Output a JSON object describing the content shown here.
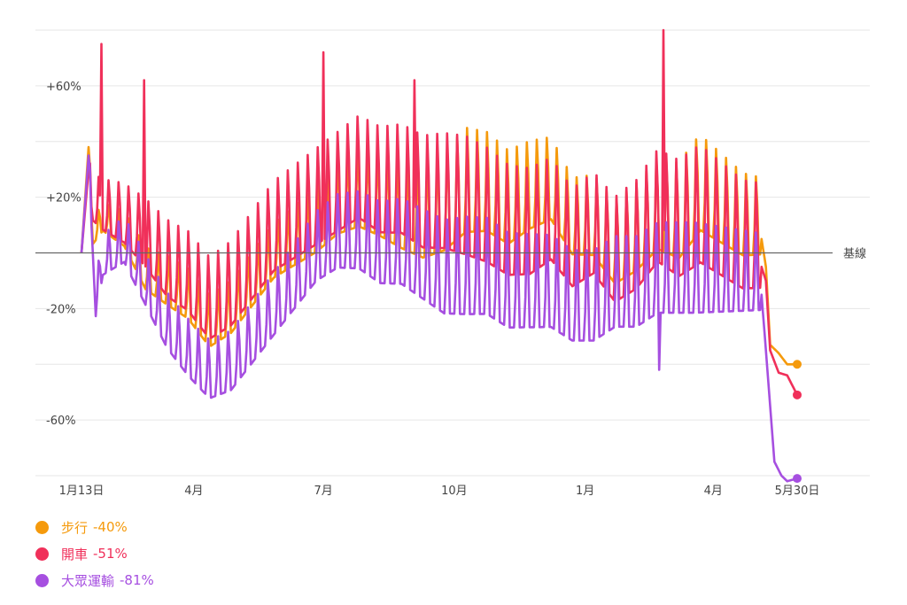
{
  "chart_data": {
    "type": "line",
    "title": "",
    "xlabel": "",
    "ylabel": "",
    "ylim": [
      -80,
      80
    ],
    "y_ticks": [
      {
        "value": 60,
        "label": "+60%"
      },
      {
        "value": 20,
        "label": "+20%"
      },
      {
        "value": -20,
        "label": "-20%"
      },
      {
        "value": -60,
        "label": "-60%"
      }
    ],
    "x_ticks": [
      {
        "day": 0,
        "label": "1月13日"
      },
      {
        "day": 79,
        "label": "4月"
      },
      {
        "day": 170,
        "label": "7月"
      },
      {
        "day": 262,
        "label": "10月"
      },
      {
        "day": 354,
        "label": "1月"
      },
      {
        "day": 444,
        "label": "4月"
      },
      {
        "day": 503,
        "label": "5月30日"
      }
    ],
    "baseline": {
      "value": 0,
      "label": "基線"
    },
    "grid": true,
    "legend_position": "bottom-left",
    "series": [
      {
        "key": "walking",
        "name": "步行",
        "last_label": "-40%",
        "color": "#f59a0c",
        "keypoints": [
          [
            0,
            0
          ],
          [
            5,
            38
          ],
          [
            8,
            5
          ],
          [
            15,
            10
          ],
          [
            30,
            5
          ],
          [
            45,
            -10
          ],
          [
            60,
            -15
          ],
          [
            75,
            -20
          ],
          [
            90,
            -30
          ],
          [
            105,
            -25
          ],
          [
            120,
            -15
          ],
          [
            135,
            -5
          ],
          [
            150,
            0
          ],
          [
            165,
            5
          ],
          [
            180,
            12
          ],
          [
            195,
            15
          ],
          [
            210,
            12
          ],
          [
            225,
            8
          ],
          [
            240,
            5
          ],
          [
            255,
            8
          ],
          [
            270,
            15
          ],
          [
            285,
            15
          ],
          [
            300,
            10
          ],
          [
            315,
            15
          ],
          [
            330,
            18
          ],
          [
            345,
            5
          ],
          [
            360,
            5
          ],
          [
            375,
            -5
          ],
          [
            390,
            0
          ],
          [
            405,
            8
          ],
          [
            420,
            5
          ],
          [
            435,
            15
          ],
          [
            450,
            10
          ],
          [
            465,
            5
          ],
          [
            478,
            5
          ],
          [
            481,
            -5
          ],
          [
            484,
            -33
          ],
          [
            490,
            -36
          ],
          [
            496,
            -40
          ],
          [
            503,
            -40
          ]
        ],
        "weekly_amp": [
          [
            0,
            6
          ],
          [
            60,
            14
          ],
          [
            140,
            16
          ],
          [
            270,
            30
          ],
          [
            345,
            22
          ],
          [
            430,
            28
          ],
          [
            478,
            22
          ]
        ]
      },
      {
        "key": "driving",
        "name": "開車",
        "last_label": "-51%",
        "color": "#f0305a",
        "keypoints": [
          [
            0,
            0
          ],
          [
            5,
            30
          ],
          [
            8,
            15
          ],
          [
            15,
            12
          ],
          [
            30,
            8
          ],
          [
            45,
            0
          ],
          [
            60,
            -10
          ],
          [
            75,
            -15
          ],
          [
            90,
            -25
          ],
          [
            105,
            -20
          ],
          [
            120,
            -10
          ],
          [
            135,
            0
          ],
          [
            150,
            5
          ],
          [
            165,
            10
          ],
          [
            180,
            15
          ],
          [
            195,
            20
          ],
          [
            210,
            15
          ],
          [
            225,
            15
          ],
          [
            240,
            10
          ],
          [
            255,
            10
          ],
          [
            270,
            8
          ],
          [
            285,
            5
          ],
          [
            300,
            0
          ],
          [
            315,
            0
          ],
          [
            330,
            5
          ],
          [
            345,
            -5
          ],
          [
            360,
            0
          ],
          [
            375,
            -10
          ],
          [
            390,
            -5
          ],
          [
            405,
            5
          ],
          [
            420,
            0
          ],
          [
            435,
            5
          ],
          [
            450,
            0
          ],
          [
            465,
            -5
          ],
          [
            478,
            -5
          ],
          [
            481,
            -10
          ],
          [
            484,
            -35
          ],
          [
            490,
            -43
          ],
          [
            496,
            -44
          ],
          [
            503,
            -51
          ]
        ],
        "weekly_amp": [
          [
            0,
            12
          ],
          [
            60,
            22
          ],
          [
            140,
            26
          ],
          [
            270,
            34
          ],
          [
            345,
            28
          ],
          [
            430,
            34
          ],
          [
            478,
            30
          ]
        ],
        "spikes": [
          [
            14,
            75
          ],
          [
            44,
            62
          ],
          [
            170,
            72
          ],
          [
            234,
            62
          ],
          [
            409,
            80
          ]
        ]
      },
      {
        "key": "transit",
        "name": "大眾運輸",
        "last_label": "-81%",
        "color": "#a64fe0",
        "keypoints": [
          [
            0,
            0
          ],
          [
            5,
            35
          ],
          [
            10,
            -20
          ],
          [
            15,
            -5
          ],
          [
            30,
            0
          ],
          [
            45,
            -15
          ],
          [
            60,
            -30
          ],
          [
            75,
            -40
          ],
          [
            90,
            -48
          ],
          [
            105,
            -45
          ],
          [
            120,
            -35
          ],
          [
            135,
            -25
          ],
          [
            150,
            -15
          ],
          [
            165,
            -5
          ],
          [
            180,
            0
          ],
          [
            195,
            0
          ],
          [
            210,
            -5
          ],
          [
            225,
            -5
          ],
          [
            240,
            -10
          ],
          [
            255,
            -15
          ],
          [
            270,
            -15
          ],
          [
            285,
            -15
          ],
          [
            300,
            -20
          ],
          [
            315,
            -20
          ],
          [
            330,
            -20
          ],
          [
            345,
            -25
          ],
          [
            360,
            -25
          ],
          [
            375,
            -20
          ],
          [
            390,
            -20
          ],
          [
            405,
            -15
          ],
          [
            420,
            -15
          ],
          [
            435,
            -15
          ],
          [
            450,
            -15
          ],
          [
            465,
            -15
          ],
          [
            478,
            -15
          ],
          [
            481,
            -35
          ],
          [
            484,
            -55
          ],
          [
            487,
            -75
          ],
          [
            492,
            -80
          ],
          [
            496,
            -82
          ],
          [
            503,
            -81
          ]
        ],
        "weekly_amp": [
          [
            0,
            10
          ],
          [
            60,
            16
          ],
          [
            140,
            18
          ],
          [
            270,
            28
          ],
          [
            345,
            26
          ],
          [
            430,
            26
          ],
          [
            478,
            22
          ]
        ],
        "dips": [
          [
            406,
            -42
          ]
        ]
      }
    ]
  }
}
